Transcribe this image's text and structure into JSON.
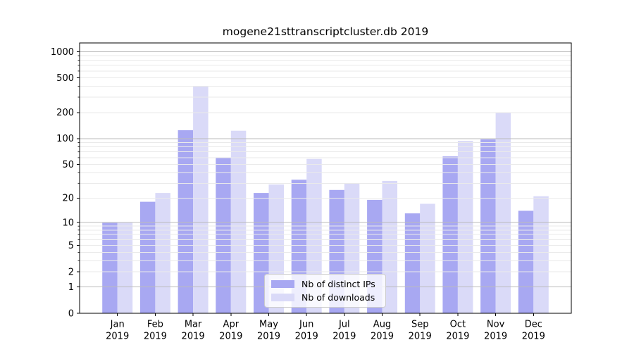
{
  "title": "mogene21sttranscriptcluster.db 2019",
  "chart_data": {
    "type": "bar",
    "title": "mogene21sttranscriptcluster.db 2019",
    "categories": [
      "Jan 2019",
      "Feb 2019",
      "Mar 2019",
      "Apr 2019",
      "May 2019",
      "Jun 2019",
      "Jul 2019",
      "Aug 2019",
      "Sep 2019",
      "Oct 2019",
      "Nov 2019",
      "Dec 2019"
    ],
    "series": [
      {
        "name": "Nb of distinct IPs",
        "color": "#a8a8f2",
        "values": [
          10,
          18,
          125,
          60,
          23,
          33,
          25,
          19,
          13,
          62,
          98,
          14
        ]
      },
      {
        "name": "Nb of downloads",
        "color": "#dadaf8",
        "values": [
          10,
          23,
          400,
          123,
          29,
          58,
          30,
          32,
          17,
          94,
          200,
          21
        ]
      }
    ],
    "xlabel": "",
    "ylabel": "",
    "yscale": "log1p",
    "ylim": [
      0,
      1260
    ],
    "yticks": [
      0,
      1,
      2,
      5,
      10,
      20,
      50,
      100,
      200,
      500,
      1000
    ],
    "grid": {
      "on": true,
      "major_lines": [
        1,
        10,
        100,
        1000
      ],
      "minor_multiples": [
        2,
        3,
        4,
        5,
        6,
        7,
        8,
        9
      ],
      "minor_tick_multiples": [
        3,
        4,
        6,
        7,
        8,
        9
      ],
      "major_color": "#bbbbbb",
      "minor_color": "#eaeaea"
    },
    "legend": {
      "position": "lower center",
      "entries": [
        "Nb of distinct IPs",
        "Nb of downloads"
      ]
    },
    "axis_color": "#000000",
    "background": "#ffffff"
  }
}
